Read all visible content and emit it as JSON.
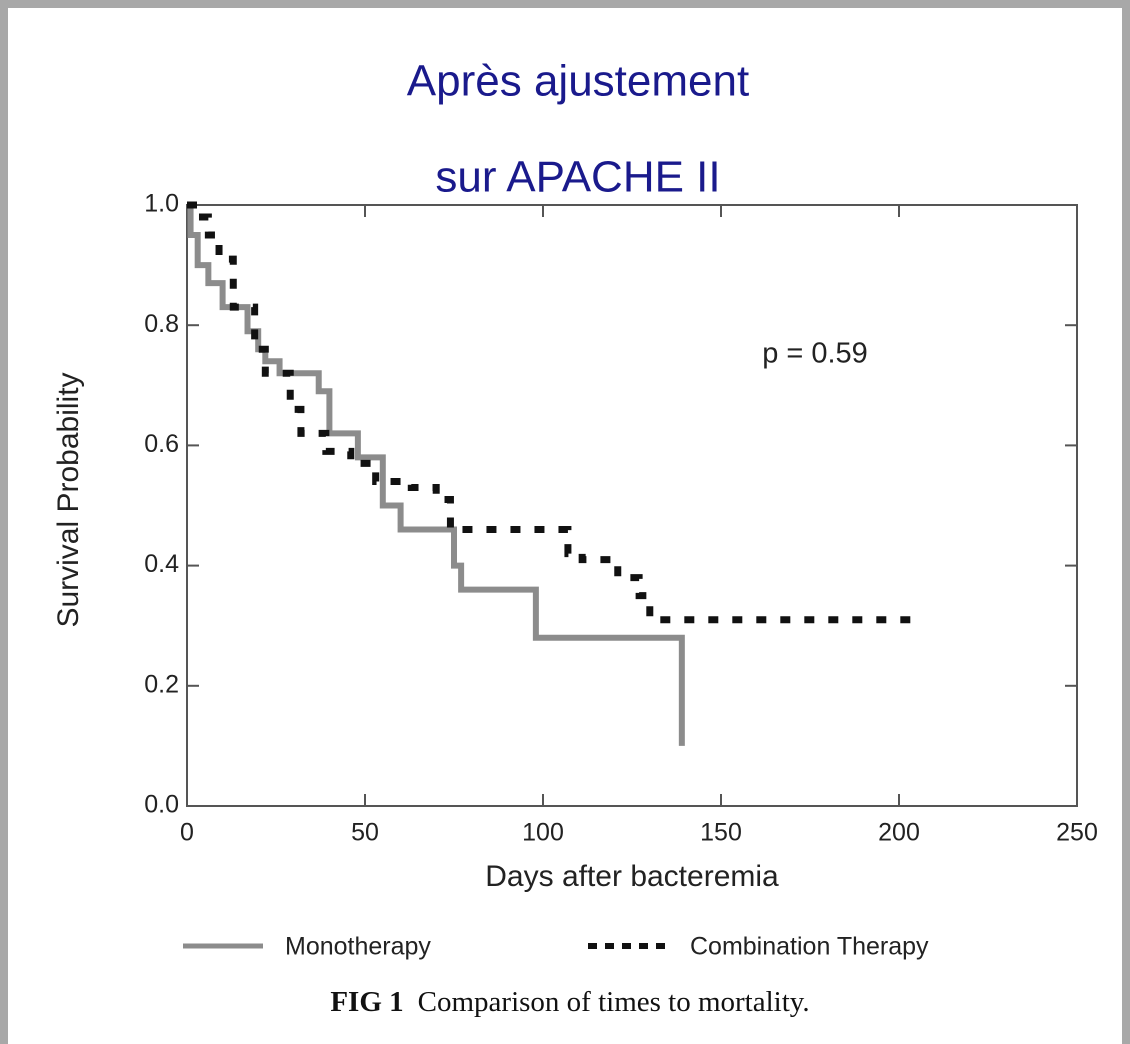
{
  "chart_data": {
    "type": "step",
    "title": [
      "Après ajustement",
      "sur APACHE II"
    ],
    "x_label": "Days after bacteremia",
    "y_label": "Survival Probability",
    "annotation": "p = 0.59",
    "caption": {
      "label": "FIG 1",
      "text": "Comparison of times to mortality."
    },
    "xlim": [
      0,
      250
    ],
    "xticks": [
      0,
      50,
      100,
      150,
      200,
      250
    ],
    "ylim": [
      0,
      1
    ],
    "yticks": [
      {
        "value": 0,
        "label": "0.0"
      },
      0.2,
      0.4,
      0.6,
      0.8,
      {
        "value": 1,
        "label": "1.0"
      }
    ],
    "legend": "bottom",
    "series": [
      {
        "name": "Monotherapy",
        "color": "#8c8c8c",
        "style": "solid",
        "x": [
          0,
          1,
          1,
          3,
          3,
          6,
          6,
          10,
          10,
          17,
          17,
          20,
          20,
          22,
          22,
          26,
          26,
          37,
          37,
          40,
          40,
          48,
          48,
          55,
          55,
          60,
          60,
          75,
          75,
          77,
          77,
          98,
          98,
          139,
          139
        ],
        "values": [
          1.0,
          1.0,
          0.95,
          0.95,
          0.9,
          0.9,
          0.87,
          0.87,
          0.83,
          0.83,
          0.79,
          0.79,
          0.76,
          0.76,
          0.74,
          0.74,
          0.72,
          0.72,
          0.69,
          0.69,
          0.62,
          0.62,
          0.58,
          0.58,
          0.5,
          0.5,
          0.46,
          0.46,
          0.4,
          0.4,
          0.36,
          0.36,
          0.28,
          0.28,
          0.1
        ]
      },
      {
        "name": "Combination Therapy",
        "color": "#111111",
        "style": "dashed",
        "x": [
          0,
          3,
          3,
          6,
          6,
          9,
          9,
          13,
          13,
          19,
          19,
          22,
          22,
          29,
          29,
          32,
          32,
          39,
          39,
          46,
          46,
          53,
          53,
          63,
          63,
          70,
          70,
          74,
          74,
          107,
          107,
          111,
          111,
          121,
          121,
          127,
          127,
          130,
          130,
          205
        ],
        "values": [
          1.0,
          1.0,
          0.98,
          0.98,
          0.95,
          0.95,
          0.91,
          0.91,
          0.83,
          0.83,
          0.76,
          0.76,
          0.72,
          0.72,
          0.66,
          0.66,
          0.62,
          0.62,
          0.59,
          0.59,
          0.57,
          0.57,
          0.54,
          0.54,
          0.53,
          0.53,
          0.51,
          0.51,
          0.46,
          0.46,
          0.42,
          0.42,
          0.41,
          0.41,
          0.38,
          0.38,
          0.35,
          0.35,
          0.31,
          0.31
        ]
      }
    ]
  }
}
